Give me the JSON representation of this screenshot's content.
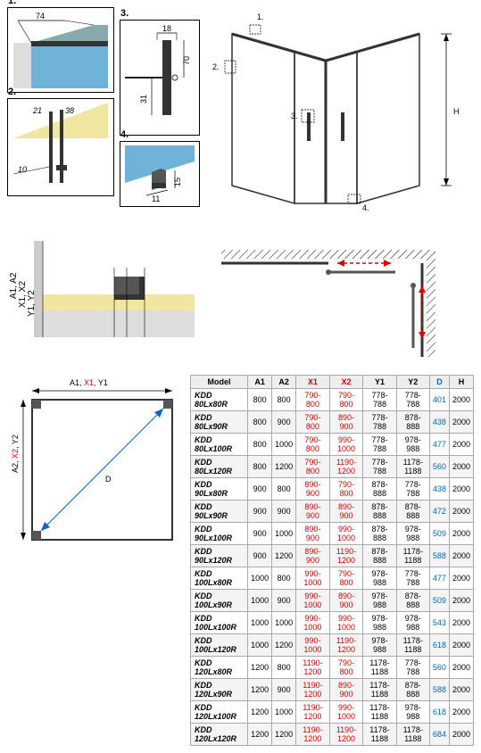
{
  "details": {
    "d1": {
      "num": "1.",
      "w": "74"
    },
    "d2": {
      "num": "2.",
      "a": "21",
      "b": "38",
      "c": "10"
    },
    "d3": {
      "num": "3.",
      "w": "18",
      "h1": "70",
      "h2": "31"
    },
    "d4": {
      "num": "4.",
      "w": "11",
      "h": "15"
    }
  },
  "main3d": {
    "callouts": [
      "1.",
      "2.",
      "3.",
      "4."
    ],
    "hLabel": "H"
  },
  "crossSection": {
    "labels_top": [
      "A1, A2",
      "X1, X2",
      "Y1, Y2"
    ]
  },
  "planRect": {
    "top": "A1, X1, Y1",
    "left": "A2, X2, Y2",
    "diag": "D"
  },
  "table": {
    "headers": [
      {
        "text": "Model",
        "cls": "black"
      },
      {
        "text": "A1",
        "cls": "black"
      },
      {
        "text": "A2",
        "cls": "black"
      },
      {
        "text": "X1",
        "cls": "red"
      },
      {
        "text": "X2",
        "cls": "red"
      },
      {
        "text": "Y1",
        "cls": "black"
      },
      {
        "text": "Y2",
        "cls": "black"
      },
      {
        "text": "D",
        "cls": "blue"
      },
      {
        "text": "H",
        "cls": "black"
      }
    ],
    "rows": [
      [
        "KDD 80Lx80R",
        "800",
        "800",
        "790-800",
        "790-800",
        "778-788",
        "778-788",
        "401",
        "2000"
      ],
      [
        "KDD 80Lx90R",
        "800",
        "900",
        "790-800",
        "890-900",
        "778-788",
        "878-888",
        "438",
        "2000"
      ],
      [
        "KDD 80Lx100R",
        "800",
        "1000",
        "790-800",
        "990-1000",
        "778-788",
        "978-988",
        "477",
        "2000"
      ],
      [
        "KDD 80Lx120R",
        "800",
        "1200",
        "790-800",
        "1190-1200",
        "778-788",
        "1178-1188",
        "560",
        "2000"
      ],
      [
        "KDD 90Lx80R",
        "900",
        "800",
        "890-900",
        "790-800",
        "878-888",
        "778-788",
        "438",
        "2000"
      ],
      [
        "KDD 90Lx90R",
        "900",
        "900",
        "890-900",
        "890-900",
        "878-888",
        "878-888",
        "472",
        "2000"
      ],
      [
        "KDD 90Lx100R",
        "900",
        "1000",
        "890-900",
        "990-1000",
        "878-888",
        "978-988",
        "509",
        "2000"
      ],
      [
        "KDD 90Lx120R",
        "900",
        "1200",
        "890-900",
        "1190-1200",
        "878-888",
        "1178-1188",
        "588",
        "2000"
      ],
      [
        "KDD 100Lx80R",
        "1000",
        "800",
        "990-1000",
        "790-800",
        "978-988",
        "778-788",
        "477",
        "2000"
      ],
      [
        "KDD 100Lx90R",
        "1000",
        "900",
        "990-1000",
        "890-900",
        "978-988",
        "878-888",
        "509",
        "2000"
      ],
      [
        "KDD 100Lx100R",
        "1000",
        "1000",
        "990-1000",
        "990-1000",
        "978-988",
        "978-988",
        "543",
        "2000"
      ],
      [
        "KDD 100Lx120R",
        "1000",
        "1200",
        "990-1000",
        "1190-1200",
        "978-988",
        "1178-1188",
        "618",
        "2000"
      ],
      [
        "KDD 120Lx80R",
        "1200",
        "800",
        "1190-1200",
        "790-800",
        "1178-1188",
        "778-788",
        "560",
        "2000"
      ],
      [
        "KDD 120Lx90R",
        "1200",
        "900",
        "1190-1200",
        "890-900",
        "1178-1188",
        "878-888",
        "588",
        "2000"
      ],
      [
        "KDD 120Lx100R",
        "1200",
        "1000",
        "1190-1200",
        "990-1000",
        "1178-1188",
        "978-988",
        "618",
        "2000"
      ],
      [
        "KDD 120Lx120R",
        "1200",
        "1200",
        "1190-1200",
        "1190-1200",
        "1178-1188",
        "1178-1188",
        "684",
        "2000"
      ]
    ]
  },
  "colors": {
    "glass": "#6FB4D8",
    "metal": "#4a4a4a",
    "floor": "#f0e6a0",
    "red": "#d00000",
    "blue": "#0066cc",
    "dim": "#000"
  }
}
